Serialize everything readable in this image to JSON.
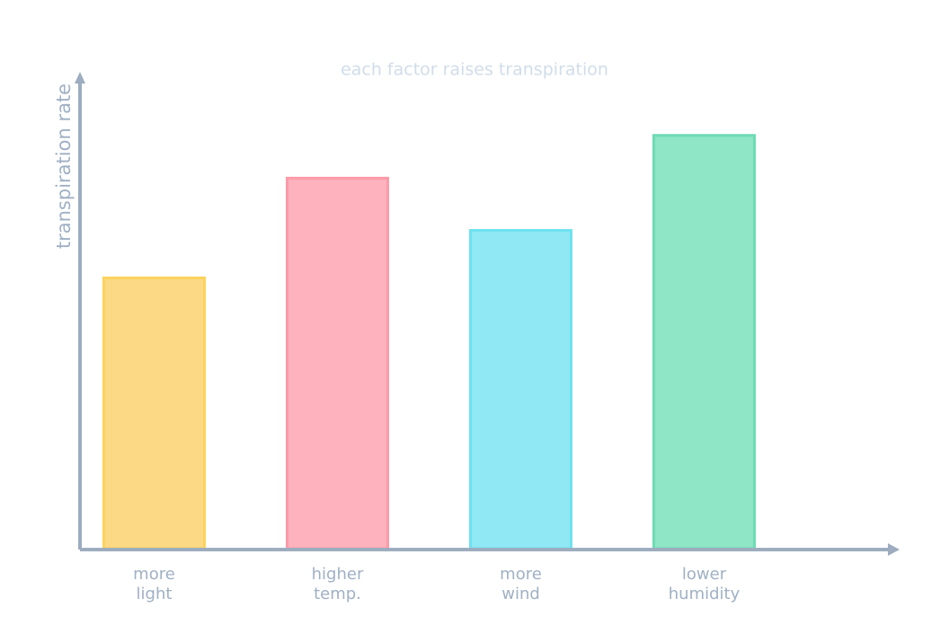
{
  "chart_data": {
    "type": "bar",
    "title": "each factor raises transpiration",
    "y_label": "transpiration rate",
    "categories": [
      [
        "more",
        "light"
      ],
      [
        "higher",
        "temp."
      ],
      [
        "more",
        "wind"
      ],
      [
        "lower",
        "humidity"
      ]
    ],
    "values": [
      57,
      78,
      67,
      87
    ],
    "colors": [
      "#fbd985",
      "#fdb2bd",
      "#90e8f5",
      "#8ee6c6"
    ],
    "edge_colors": [
      "#fcd35c",
      "#fc9aa8",
      "#6ee2f0",
      "#6edbb4"
    ],
    "ylim": [
      0,
      100
    ]
  }
}
